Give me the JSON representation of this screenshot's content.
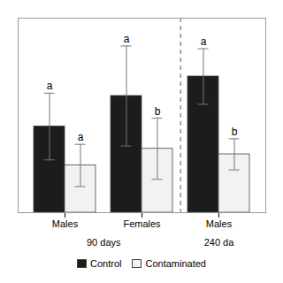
{
  "chart_data": {
    "type": "bar",
    "categories": [
      "Males",
      "Females",
      "Males"
    ],
    "series": [
      {
        "name": "Control",
        "color": "#1c1c1c",
        "values": [
          1.55,
          2.1,
          2.45
        ],
        "errors": [
          0.6,
          0.9,
          0.5
        ],
        "letters": [
          "a",
          "a",
          "a"
        ]
      },
      {
        "name": "Contaminated",
        "color": "#f2f2f2",
        "values": [
          0.85,
          1.15,
          1.05
        ],
        "errors": [
          0.38,
          0.55,
          0.28
        ],
        "letters": [
          "a",
          "b",
          "b"
        ]
      }
    ],
    "annotations": [
      "90 days",
      "240 da"
    ],
    "ylim": [
      0,
      3.5
    ],
    "tick_labels": "x",
    "grid": false,
    "legend": "bottom"
  }
}
